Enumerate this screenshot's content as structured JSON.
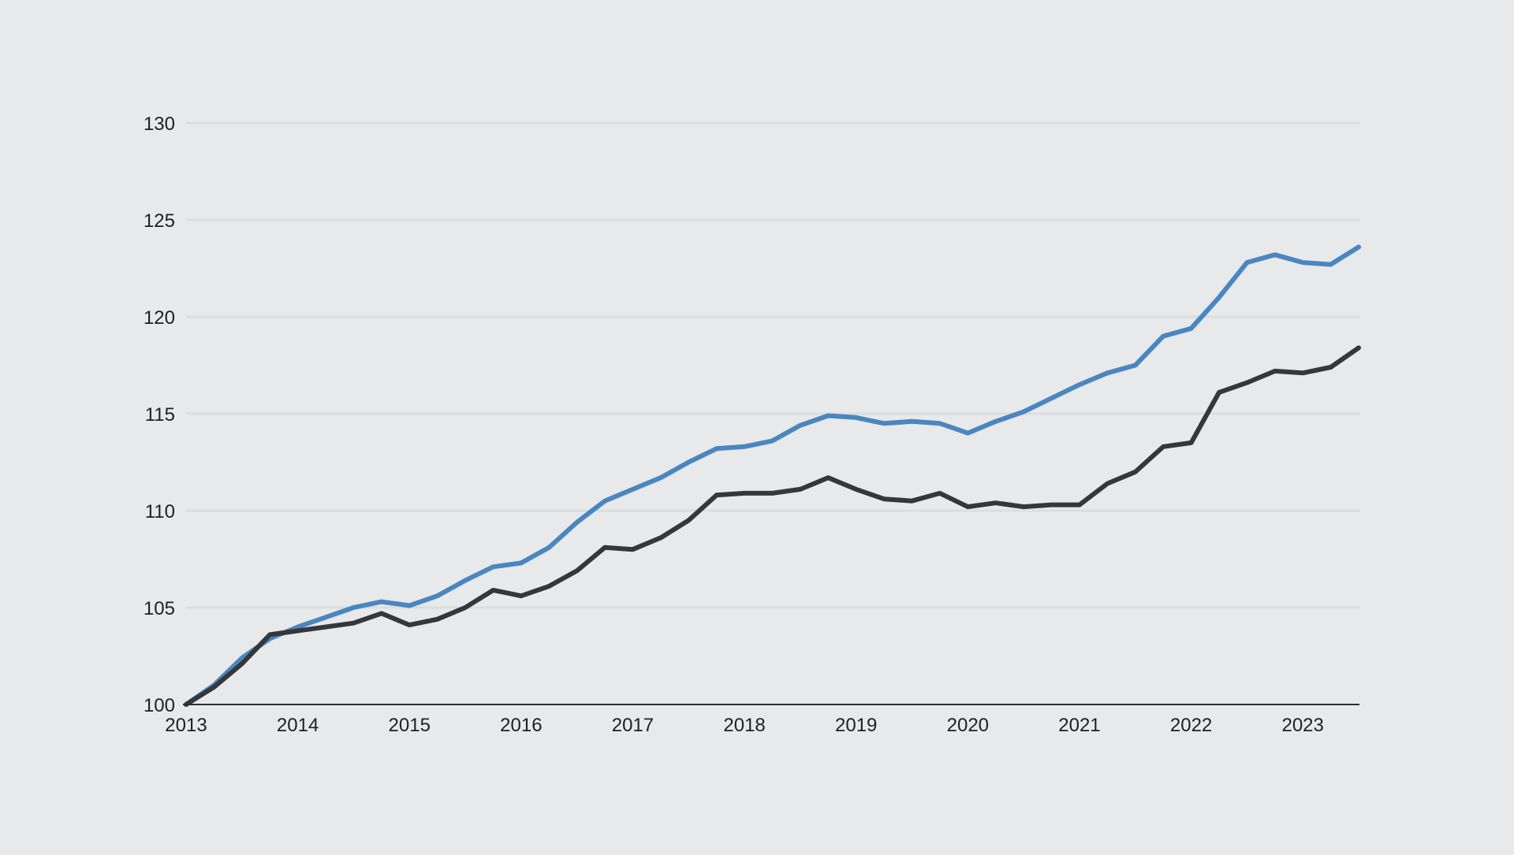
{
  "colors": {
    "background": "#e8e9eb",
    "gridline": "#dcdde0",
    "axis": "#2b2c30",
    "series_blue": "#4a86c0",
    "series_dark": "#34373b"
  },
  "chart_data": {
    "type": "line",
    "title": "",
    "xlabel": "",
    "ylabel": "",
    "xlim": [
      2013,
      2023.5
    ],
    "ylim": [
      100,
      130
    ],
    "grid": true,
    "x_ticks": [
      "2013",
      "2014",
      "2015",
      "2016",
      "2017",
      "2018",
      "2019",
      "2020",
      "2021",
      "2022",
      "2023"
    ],
    "y_ticks": [
      "100",
      "105",
      "110",
      "115",
      "120",
      "125",
      "130"
    ],
    "x": [
      2013.0,
      2013.25,
      2013.5,
      2013.75,
      2014.0,
      2014.25,
      2014.5,
      2014.75,
      2015.0,
      2015.25,
      2015.5,
      2015.75,
      2016.0,
      2016.25,
      2016.5,
      2016.75,
      2017.0,
      2017.25,
      2017.5,
      2017.75,
      2018.0,
      2018.25,
      2018.5,
      2018.75,
      2019.0,
      2019.25,
      2019.5,
      2019.75,
      2020.0,
      2020.25,
      2020.5,
      2020.75,
      2021.0,
      2021.25,
      2021.5,
      2021.75,
      2022.0,
      2022.25,
      2022.5,
      2022.75,
      2023.0,
      2023.25,
      2023.5
    ],
    "series": [
      {
        "name": "blue",
        "color": "#4a86c0",
        "values": [
          100.0,
          101.0,
          102.4,
          103.4,
          104.0,
          104.5,
          105.0,
          105.3,
          105.1,
          105.6,
          106.4,
          107.1,
          107.3,
          108.1,
          109.4,
          110.5,
          111.1,
          111.7,
          112.5,
          113.2,
          113.3,
          113.6,
          114.4,
          114.9,
          114.8,
          114.5,
          114.6,
          114.5,
          114.0,
          114.6,
          115.1,
          115.8,
          116.5,
          117.1,
          117.5,
          119.0,
          119.4,
          121.0,
          122.8,
          123.2,
          122.8,
          122.7,
          123.6
        ]
      },
      {
        "name": "dark",
        "color": "#34373b",
        "values": [
          100.0,
          100.9,
          102.1,
          103.6,
          103.8,
          104.0,
          104.2,
          104.7,
          104.1,
          104.4,
          105.0,
          105.9,
          105.6,
          106.1,
          106.9,
          108.1,
          108.0,
          108.6,
          109.5,
          110.8,
          110.9,
          110.9,
          111.1,
          111.7,
          111.1,
          110.6,
          110.5,
          110.9,
          110.2,
          110.4,
          110.2,
          110.3,
          110.3,
          111.4,
          112.0,
          113.3,
          113.5,
          116.1,
          116.6,
          117.2,
          117.1,
          117.4,
          118.4
        ]
      }
    ]
  }
}
